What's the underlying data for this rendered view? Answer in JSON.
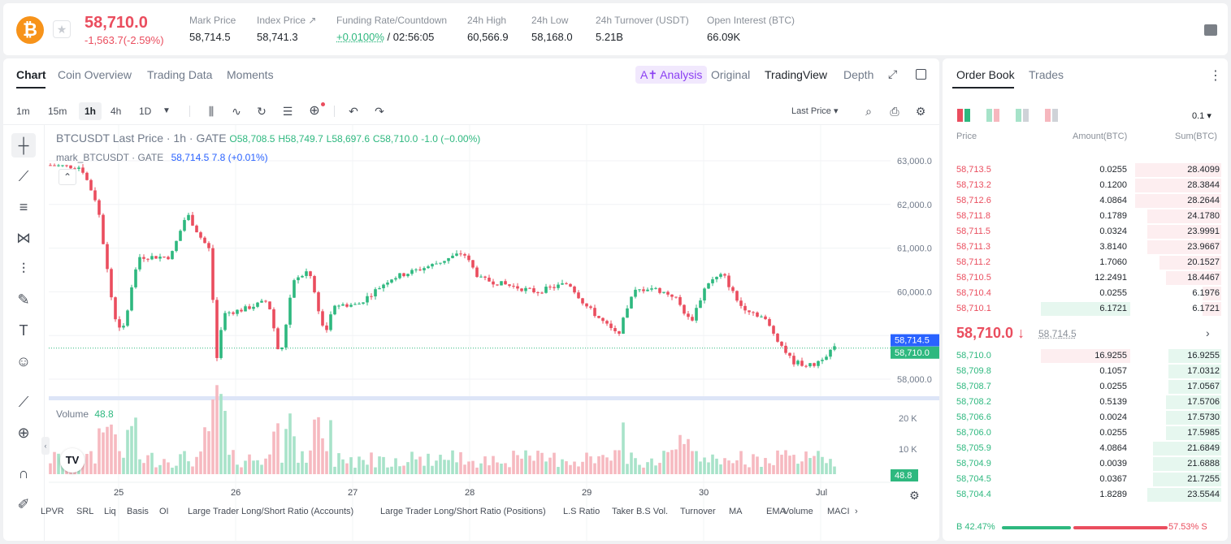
{
  "header": {
    "last_price": "58,710.0",
    "change": "-1,563.7(-2.59%)",
    "stats": [
      {
        "label": "Mark Price",
        "value": "58,714.5"
      },
      {
        "label": "Index Price ↗",
        "value": "58,741.3"
      },
      {
        "label": "Funding Rate/Countdown",
        "value": "+0.0100%",
        "value2": " / 02:56:05"
      },
      {
        "label": "24h High",
        "value": "60,566.9"
      },
      {
        "label": "24h Low",
        "value": "58,168.0"
      },
      {
        "label": "24h Turnover (USDT)",
        "value": "5.21B"
      },
      {
        "label": "Open Interest (BTC)",
        "value": "66.09K"
      }
    ],
    "coin_icon": "bitcoin-icon",
    "star_icon": "star-icon"
  },
  "chart_tabs": [
    "Chart",
    "Coin Overview",
    "Trading Data",
    "Moments"
  ],
  "view_tabs": {
    "ai": "A✝ Analysis",
    "original": "Original",
    "tradingview": "TradingView",
    "depth": "Depth"
  },
  "intervals": [
    "1m",
    "15m",
    "1h",
    "4h",
    "1D"
  ],
  "price_type": "Last Price ▾",
  "legend": {
    "symbol": "BTCUSDT Last Price · 1h · GATE",
    "o": "O58,708.5",
    "h": "H58,749.7",
    "l": "L58,697.6",
    "c": "C58,710.0",
    "chg": "-1.0 (−0.00%)",
    "mark": "mark_BTCUSDT · GATE",
    "mark_val": "58,714.5  7.8 (+0.01%)"
  },
  "volume_legend": {
    "label": "Volume",
    "value": "48.8"
  },
  "price_axis": [
    "63,000.0",
    "62,000.0",
    "61,000.0",
    "60,000.0",
    "58,000.0"
  ],
  "price_tags": {
    "mark": "58,714.5",
    "last": "58,710.0"
  },
  "volume_axis": [
    "20 K",
    "10 K"
  ],
  "volume_tag": "48.8",
  "time_axis": [
    "25",
    "26",
    "27",
    "28",
    "29",
    "30",
    "Jul"
  ],
  "bottom_indicators": [
    "LPVR",
    "SRL",
    "Liq",
    "Basis",
    "OI",
    "Large Trader Long/Short Ratio (Accounts)",
    "Large Trader Long/Short Ratio (Positions)",
    "L.S Ratio",
    "Taker B.S Vol.",
    "Turnover",
    "MA",
    "EMA",
    "Volume",
    "MACI"
  ],
  "tv_logo": "TV",
  "orderbook": {
    "tabs": [
      "Order Book",
      "Trades"
    ],
    "precision": "0.1 ▾",
    "headers": [
      "Price",
      "Amount(BTC)",
      "Sum(BTC)"
    ],
    "asks": [
      {
        "price": "58,713.5",
        "amount": "0.0255",
        "sum": "28.4099",
        "depth": 0.28
      },
      {
        "price": "58,713.2",
        "amount": "0.1200",
        "sum": "28.3844",
        "depth": 0.28
      },
      {
        "price": "58,712.6",
        "amount": "4.0864",
        "sum": "28.2644",
        "depth": 0.28
      },
      {
        "price": "58,711.8",
        "amount": "0.1789",
        "sum": "24.1780",
        "depth": 0.24
      },
      {
        "price": "58,711.5",
        "amount": "0.0324",
        "sum": "23.9991",
        "depth": 0.24
      },
      {
        "price": "58,711.3",
        "amount": "3.8140",
        "sum": "23.9667",
        "depth": 0.24
      },
      {
        "price": "58,711.2",
        "amount": "1.7060",
        "sum": "20.1527",
        "depth": 0.2
      },
      {
        "price": "58,710.5",
        "amount": "12.2491",
        "sum": "18.4467",
        "depth": 0.18
      },
      {
        "price": "58,710.4",
        "amount": "0.0255",
        "sum": "6.1976",
        "depth": 0.06
      },
      {
        "price": "58,710.1",
        "amount": "6.1721",
        "sum": "6.1721",
        "depth": 0.06
      }
    ],
    "mid": {
      "price": "58,710.0 ↓",
      "mark": "58,714.5"
    },
    "bids": [
      {
        "price": "58,710.0",
        "amount": "16.9255",
        "sum": "16.9255",
        "depth": 0.17
      },
      {
        "price": "58,709.8",
        "amount": "0.1057",
        "sum": "17.0312",
        "depth": 0.17
      },
      {
        "price": "58,708.7",
        "amount": "0.0255",
        "sum": "17.0567",
        "depth": 0.17
      },
      {
        "price": "58,708.2",
        "amount": "0.5139",
        "sum": "17.5706",
        "depth": 0.18
      },
      {
        "price": "58,706.6",
        "amount": "0.0024",
        "sum": "17.5730",
        "depth": 0.18
      },
      {
        "price": "58,706.0",
        "amount": "0.0255",
        "sum": "17.5985",
        "depth": 0.18
      },
      {
        "price": "58,705.9",
        "amount": "4.0864",
        "sum": "21.6849",
        "depth": 0.22
      },
      {
        "price": "58,704.9",
        "amount": "0.0039",
        "sum": "21.6888",
        "depth": 0.22
      },
      {
        "price": "58,704.5",
        "amount": "0.0367",
        "sum": "21.7255",
        "depth": 0.22
      },
      {
        "price": "58,704.4",
        "amount": "1.8289",
        "sum": "23.5544",
        "depth": 0.24
      }
    ],
    "ratio_b": "B 42.47%",
    "ratio_s": "57.53% S",
    "ratio_b_value": 42.47
  },
  "colors": {
    "up": "#2eb87f",
    "down": "#ea4d5e",
    "accent": "#8a3ff2"
  }
}
